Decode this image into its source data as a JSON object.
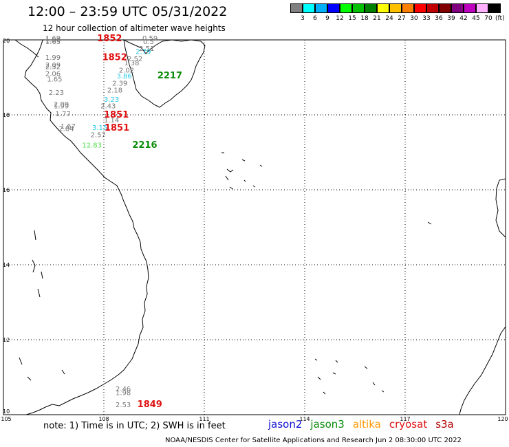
{
  "title": "12:00 – 23:59 UTC 05/31/2022",
  "subtitle": "12 hour collection of altimeter wave heights",
  "scale": {
    "swatches": [
      "#808080",
      "#00ffff",
      "#00b0ff",
      "#0000ff",
      "#00ff00",
      "#00c000",
      "#008000",
      "#ffff00",
      "#ffc000",
      "#ff8000",
      "#ff0000",
      "#c00000",
      "#800000",
      "#800080",
      "#c000c0",
      "#ffb0ff",
      "#000000"
    ],
    "labels": [
      "3",
      "6",
      "9",
      "12",
      "15",
      "18",
      "21",
      "24",
      "27",
      "30",
      "33",
      "36",
      "39",
      "42",
      "45",
      "70"
    ],
    "unit": "(ft)"
  },
  "axes": {
    "lon_labels": [
      "105",
      "108",
      "111",
      "114",
      "117",
      "120"
    ],
    "lat_labels": [
      "20",
      "18",
      "16",
      "14",
      "12",
      "10"
    ]
  },
  "wave_heights": [
    {
      "v": "1.69",
      "lon": 106.25,
      "lat": 19.98,
      "c": "gray"
    },
    {
      "v": "1.66",
      "lon": 106.25,
      "lat": 19.94,
      "c": "gray"
    },
    {
      "v": "1.65",
      "lon": 106.25,
      "lat": 19.89,
      "c": "gray"
    },
    {
      "v": "0.59",
      "lon": 109.15,
      "lat": 19.98,
      "c": "gray"
    },
    {
      "v": "0.5",
      "lon": 109.17,
      "lat": 19.89,
      "c": "gray"
    },
    {
      "v": "2.51",
      "lon": 109.05,
      "lat": 19.71,
      "c": "gray"
    },
    {
      "v": "2.79",
      "lon": 108.95,
      "lat": 19.62,
      "c": "cyan"
    },
    {
      "v": "1.99",
      "lon": 106.25,
      "lat": 19.47,
      "c": "gray"
    },
    {
      "v": "2.52",
      "lon": 108.7,
      "lat": 19.43,
      "c": "gray"
    },
    {
      "v": "1.38",
      "lon": 108.6,
      "lat": 19.32,
      "c": "gray"
    },
    {
      "v": "2.09",
      "lon": 106.25,
      "lat": 19.27,
      "c": "gray"
    },
    {
      "v": "2.32",
      "lon": 106.25,
      "lat": 19.22,
      "c": "gray"
    },
    {
      "v": "2.02",
      "lon": 108.45,
      "lat": 19.13,
      "c": "gray"
    },
    {
      "v": "2.06",
      "lon": 106.25,
      "lat": 19.04,
      "c": "gray"
    },
    {
      "v": "3.86",
      "lon": 108.38,
      "lat": 18.97,
      "c": "cyan"
    },
    {
      "v": "1.65",
      "lon": 106.3,
      "lat": 18.89,
      "c": "gray"
    },
    {
      "v": "2.39",
      "lon": 108.25,
      "lat": 18.78,
      "c": "gray"
    },
    {
      "v": "2.18",
      "lon": 108.1,
      "lat": 18.6,
      "c": "gray"
    },
    {
      "v": "2.23",
      "lon": 106.35,
      "lat": 18.53,
      "c": "gray"
    },
    {
      "v": "3.23",
      "lon": 108.0,
      "lat": 18.35,
      "c": "cyan"
    },
    {
      "v": "2.09",
      "lon": 106.5,
      "lat": 18.22,
      "c": "gray"
    },
    {
      "v": "1.99",
      "lon": 106.5,
      "lat": 18.17,
      "c": "gray"
    },
    {
      "v": "2.43",
      "lon": 107.9,
      "lat": 18.17,
      "c": "gray"
    },
    {
      "v": "1.77",
      "lon": 106.55,
      "lat": 17.96,
      "c": "gray"
    },
    {
      "v": "1.14",
      "lon": 108.0,
      "lat": 17.8,
      "c": "gray"
    },
    {
      "v": "1.67",
      "lon": 106.7,
      "lat": 17.63,
      "c": "gray"
    },
    {
      "v": "2.84",
      "lon": 106.65,
      "lat": 17.57,
      "c": "gray"
    },
    {
      "v": "3.15",
      "lon": 107.65,
      "lat": 17.6,
      "c": "cyan"
    },
    {
      "v": "2.57",
      "lon": 107.6,
      "lat": 17.4,
      "c": "gray"
    },
    {
      "v": "12.83",
      "lon": 107.35,
      "lat": 17.13,
      "c": "green"
    },
    {
      "v": "2.46",
      "lon": 108.35,
      "lat": 10.62,
      "c": "gray"
    },
    {
      "v": "1.98",
      "lon": 108.35,
      "lat": 10.52,
      "c": "gray"
    },
    {
      "v": "2.53",
      "lon": 108.35,
      "lat": 10.2,
      "c": "gray"
    }
  ],
  "pass_times": [
    {
      "t": "1852",
      "lon": 107.8,
      "lat": 19.96,
      "c": "red"
    },
    {
      "t": "1852",
      "lon": 107.95,
      "lat": 19.46,
      "c": "red"
    },
    {
      "t": "2217",
      "lon": 109.6,
      "lat": 18.97,
      "c": "green"
    },
    {
      "t": "1851",
      "lon": 108.0,
      "lat": 17.93,
      "c": "red"
    },
    {
      "t": "1851",
      "lon": 108.02,
      "lat": 17.58,
      "c": "red"
    },
    {
      "t": "2216",
      "lon": 108.85,
      "lat": 17.12,
      "c": "green"
    },
    {
      "t": "1849",
      "lon": 109.0,
      "lat": 10.2,
      "c": "red"
    }
  ],
  "colors": {
    "gray": "#777777",
    "cyan": "#22c8e8",
    "green_wave": "#55e055",
    "red": "#e01010",
    "green": "#0a8c0a"
  },
  "note": "note:  1) Time is in UTC; 2) SWH is in feet",
  "satellites": [
    {
      "name": "jason2",
      "color": "#1010d0"
    },
    {
      "name": "jason3",
      "color": "#0a8c0a"
    },
    {
      "name": "altika",
      "color": "#ff9900"
    },
    {
      "name": "cryosat",
      "color": "#e01010"
    },
    {
      "name": "s3a",
      "color": "#b00000"
    }
  ],
  "credit": "NOAA/NESDIS Center for Satellite Applications and Research    Jun  2 08:30:00 UTC 2022"
}
